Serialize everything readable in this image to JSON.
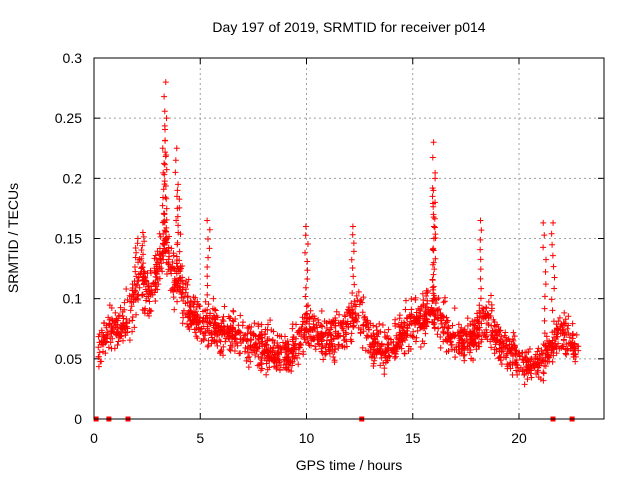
{
  "chart_data": {
    "type": "scatter",
    "title": "Day 197 of 2019, SRMTID for receiver p014",
    "xlabel": "GPS time / hours",
    "ylabel": "SRMTID / TECUs",
    "xlim": [
      0,
      24
    ],
    "ylim": [
      0,
      0.3
    ],
    "xticks": [
      0,
      5,
      10,
      15,
      20
    ],
    "xtick_labels": [
      "0",
      "5",
      "10",
      "15",
      "20"
    ],
    "yticks": [
      0,
      0.05,
      0.1,
      0.15,
      0.2,
      0.25,
      0.3
    ],
    "ytick_labels": [
      "0",
      "0.05",
      "0.1",
      "0.15",
      "0.2",
      "0.25",
      "0.3"
    ],
    "grid": true,
    "marker": "+",
    "color": "#ff0000",
    "zero_markers": [
      0.1,
      0.7,
      1.6,
      12.6,
      21.6,
      22.5
    ],
    "series": [
      {
        "name": "SRMTID",
        "trend": [
          {
            "x": 0.2,
            "y": 0.06
          },
          {
            "x": 0.5,
            "y": 0.07
          },
          {
            "x": 1.0,
            "y": 0.075
          },
          {
            "x": 1.5,
            "y": 0.08
          },
          {
            "x": 1.9,
            "y": 0.1
          },
          {
            "x": 2.2,
            "y": 0.12
          },
          {
            "x": 2.6,
            "y": 0.1
          },
          {
            "x": 3.0,
            "y": 0.12
          },
          {
            "x": 3.3,
            "y": 0.15
          },
          {
            "x": 3.6,
            "y": 0.13
          },
          {
            "x": 4.0,
            "y": 0.11
          },
          {
            "x": 4.5,
            "y": 0.09
          },
          {
            "x": 5.0,
            "y": 0.08
          },
          {
            "x": 5.5,
            "y": 0.08
          },
          {
            "x": 6.0,
            "y": 0.07
          },
          {
            "x": 6.5,
            "y": 0.075
          },
          {
            "x": 7.0,
            "y": 0.065
          },
          {
            "x": 7.5,
            "y": 0.06
          },
          {
            "x": 8.0,
            "y": 0.06
          },
          {
            "x": 8.5,
            "y": 0.055
          },
          {
            "x": 9.0,
            "y": 0.055
          },
          {
            "x": 9.5,
            "y": 0.06
          },
          {
            "x": 10.0,
            "y": 0.08
          },
          {
            "x": 10.5,
            "y": 0.07
          },
          {
            "x": 11.0,
            "y": 0.065
          },
          {
            "x": 11.5,
            "y": 0.07
          },
          {
            "x": 12.0,
            "y": 0.08
          },
          {
            "x": 12.5,
            "y": 0.09
          },
          {
            "x": 13.0,
            "y": 0.065
          },
          {
            "x": 13.5,
            "y": 0.06
          },
          {
            "x": 14.0,
            "y": 0.06
          },
          {
            "x": 14.5,
            "y": 0.07
          },
          {
            "x": 15.0,
            "y": 0.08
          },
          {
            "x": 15.5,
            "y": 0.085
          },
          {
            "x": 16.0,
            "y": 0.09
          },
          {
            "x": 16.5,
            "y": 0.075
          },
          {
            "x": 17.0,
            "y": 0.065
          },
          {
            "x": 17.5,
            "y": 0.065
          },
          {
            "x": 18.0,
            "y": 0.07
          },
          {
            "x": 18.5,
            "y": 0.085
          },
          {
            "x": 19.0,
            "y": 0.065
          },
          {
            "x": 19.5,
            "y": 0.055
          },
          {
            "x": 20.0,
            "y": 0.05
          },
          {
            "x": 20.5,
            "y": 0.045
          },
          {
            "x": 21.0,
            "y": 0.045
          },
          {
            "x": 21.5,
            "y": 0.06
          },
          {
            "x": 22.0,
            "y": 0.075
          },
          {
            "x": 22.5,
            "y": 0.06
          },
          {
            "x": 22.8,
            "y": 0.06
          }
        ],
        "spread": 0.035,
        "peaks": [
          {
            "x": 3.35,
            "y": 0.28
          },
          {
            "x": 3.35,
            "y": 0.25
          },
          {
            "x": 3.3,
            "y": 0.225
          },
          {
            "x": 3.9,
            "y": 0.225
          },
          {
            "x": 4.0,
            "y": 0.19
          },
          {
            "x": 5.4,
            "y": 0.165
          },
          {
            "x": 10.0,
            "y": 0.16
          },
          {
            "x": 12.2,
            "y": 0.16
          },
          {
            "x": 16.0,
            "y": 0.23
          },
          {
            "x": 16.0,
            "y": 0.2
          },
          {
            "x": 16.0,
            "y": 0.185
          },
          {
            "x": 18.2,
            "y": 0.165
          },
          {
            "x": 21.2,
            "y": 0.163
          },
          {
            "x": 21.6,
            "y": 0.163
          },
          {
            "x": 2.0,
            "y": 0.15
          },
          {
            "x": 2.3,
            "y": 0.155
          }
        ]
      }
    ]
  }
}
